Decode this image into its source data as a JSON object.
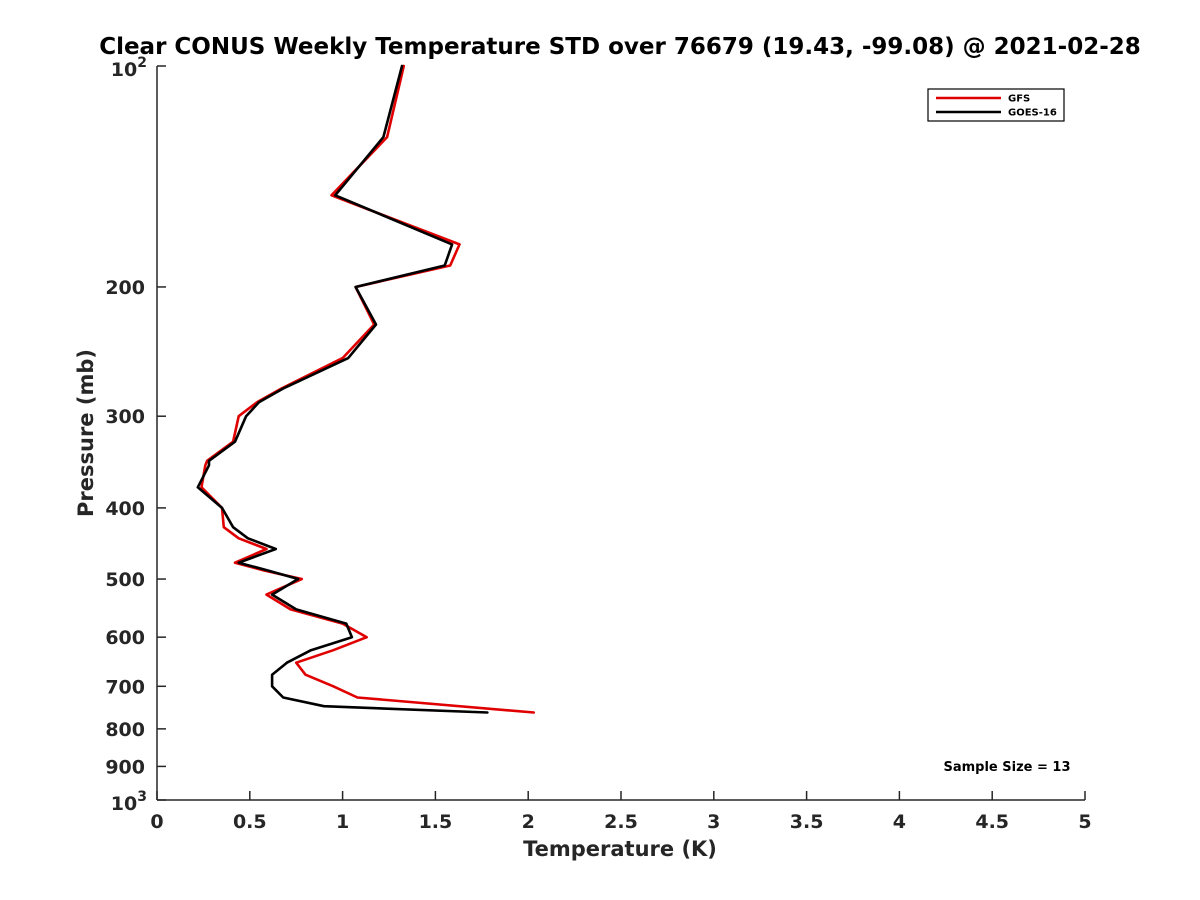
{
  "chart_data": {
    "type": "line",
    "title": "Clear CONUS Weekly Temperature STD over 76679 (19.43, -99.08) @ 2021-02-28",
    "xlabel": "Temperature (K)",
    "ylabel": "Pressure (mb)",
    "xlim": [
      0,
      5
    ],
    "ylim": [
      100,
      1000
    ],
    "y_scale": "log",
    "y_reversed": true,
    "x_ticks": [
      "0",
      "0.5",
      "1",
      "1.5",
      "2",
      "2.5",
      "3",
      "3.5",
      "4",
      "4.5",
      "5"
    ],
    "x_tick_values": [
      0,
      0.5,
      1,
      1.5,
      2,
      2.5,
      3,
      3.5,
      4,
      4.5,
      5
    ],
    "y_ticks": [
      {
        "value": 100,
        "base": "10",
        "exp": "2"
      },
      {
        "value": 200,
        "label": "200"
      },
      {
        "value": 300,
        "label": "300"
      },
      {
        "value": 400,
        "label": "400"
      },
      {
        "value": 500,
        "label": "500"
      },
      {
        "value": 600,
        "label": "600"
      },
      {
        "value": 700,
        "label": "700"
      },
      {
        "value": 800,
        "label": "800"
      },
      {
        "value": 900,
        "label": "900"
      },
      {
        "value": 1000,
        "base": "10",
        "exp": "3"
      }
    ],
    "grid": false,
    "legend_position": "top-right",
    "annotation": "Sample Size = 13",
    "series": [
      {
        "name": "GFS",
        "color": "#e00000",
        "points": [
          [
            1.33,
            100
          ],
          [
            1.24,
            125
          ],
          [
            0.94,
            150
          ],
          [
            1.63,
            175
          ],
          [
            1.58,
            187
          ],
          [
            1.07,
            200
          ],
          [
            1.17,
            225
          ],
          [
            1.0,
            250
          ],
          [
            0.67,
            275
          ],
          [
            0.54,
            287
          ],
          [
            0.44,
            300
          ],
          [
            0.41,
            325
          ],
          [
            0.27,
            345
          ],
          [
            0.26,
            350
          ],
          [
            0.24,
            375
          ],
          [
            0.35,
            400
          ],
          [
            0.36,
            425
          ],
          [
            0.44,
            440
          ],
          [
            0.59,
            455
          ],
          [
            0.42,
            475
          ],
          [
            0.58,
            487
          ],
          [
            0.78,
            500
          ],
          [
            0.59,
            525
          ],
          [
            0.72,
            550
          ],
          [
            1.0,
            575
          ],
          [
            1.13,
            600
          ],
          [
            0.95,
            625
          ],
          [
            0.75,
            650
          ],
          [
            0.8,
            675
          ],
          [
            0.95,
            700
          ],
          [
            1.08,
            725
          ],
          [
            2.03,
            760
          ]
        ]
      },
      {
        "name": "GOES-16",
        "color": "#000000",
        "points": [
          [
            1.32,
            100
          ],
          [
            1.22,
            125
          ],
          [
            0.96,
            150
          ],
          [
            1.59,
            175
          ],
          [
            1.55,
            187
          ],
          [
            1.07,
            200
          ],
          [
            1.18,
            225
          ],
          [
            1.03,
            250
          ],
          [
            0.68,
            275
          ],
          [
            0.55,
            287
          ],
          [
            0.48,
            300
          ],
          [
            0.42,
            325
          ],
          [
            0.28,
            345
          ],
          [
            0.28,
            350
          ],
          [
            0.22,
            375
          ],
          [
            0.35,
            400
          ],
          [
            0.41,
            425
          ],
          [
            0.49,
            440
          ],
          [
            0.64,
            455
          ],
          [
            0.44,
            475
          ],
          [
            0.6,
            487
          ],
          [
            0.76,
            500
          ],
          [
            0.62,
            525
          ],
          [
            0.75,
            550
          ],
          [
            1.02,
            575
          ],
          [
            1.05,
            600
          ],
          [
            0.83,
            625
          ],
          [
            0.7,
            650
          ],
          [
            0.62,
            675
          ],
          [
            0.62,
            700
          ],
          [
            0.68,
            725
          ],
          [
            0.9,
            745
          ],
          [
            1.78,
            760
          ]
        ]
      }
    ]
  }
}
